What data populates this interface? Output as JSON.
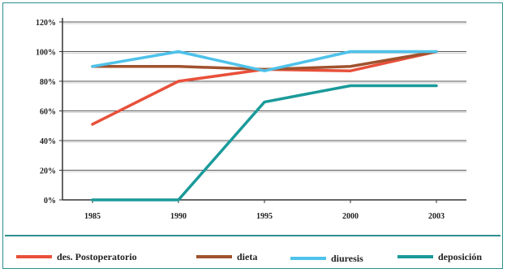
{
  "chart_data": {
    "type": "line",
    "title": "",
    "xlabel": "",
    "ylabel": "",
    "categories": [
      "1985",
      "1990",
      "1995",
      "2000",
      "2003"
    ],
    "ylim": [
      0,
      120
    ],
    "yticks": [
      "0%",
      "20%",
      "40%",
      "60%",
      "80%",
      "100%",
      "120%"
    ],
    "grid": "horizontal",
    "legend_position": "bottom",
    "series": [
      {
        "name": "des. Postoperatorio",
        "color": "#e8503a",
        "values": [
          51,
          80,
          88,
          87,
          100
        ]
      },
      {
        "name": "dieta",
        "color": "#a0522d",
        "values": [
          90,
          90,
          88,
          90,
          100
        ]
      },
      {
        "name": "diuresis",
        "color": "#4ec2ea",
        "values": [
          90,
          100,
          87,
          100,
          100
        ]
      },
      {
        "name": "deposición",
        "color": "#1a9a9a",
        "values": [
          0,
          0,
          66,
          77,
          77
        ]
      }
    ]
  }
}
